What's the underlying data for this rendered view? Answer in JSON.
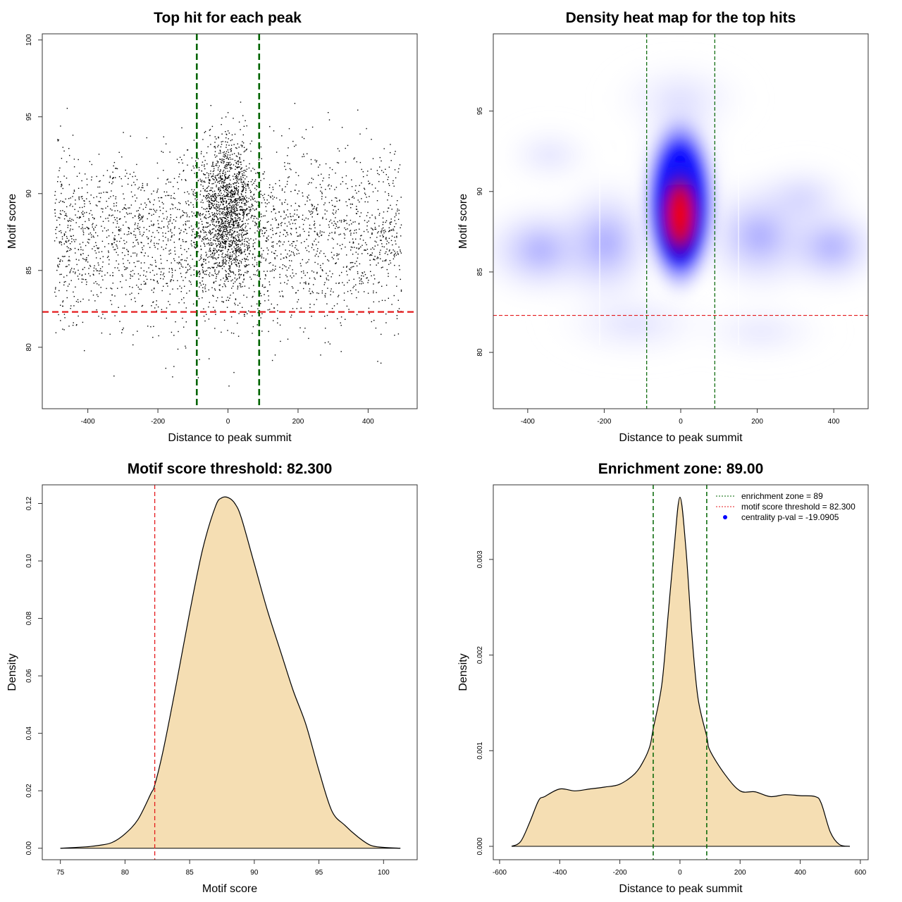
{
  "chart_data": [
    {
      "type": "scatter",
      "title": "Top hit for each peak",
      "xlabel": "Distance to peak summit",
      "ylabel": "Motif score",
      "xlim": [
        -530,
        540
      ],
      "ylim": [
        76,
        100.4
      ],
      "xticks": [
        -400,
        -200,
        0,
        200,
        400
      ],
      "yticks": [
        80,
        85,
        90,
        95,
        100
      ],
      "vlines": [
        -89,
        89
      ],
      "hline": 82.3,
      "vline_color": "#006400",
      "hline_color": "#e41a1c",
      "point_color": "#000000",
      "points_summary": "dense cloud of ~4000 top-hit points; broad background spanning x -500..500, y ~78..98 centered near y=87; concentrated cluster at x ~-80..80, y ~84..95 centered near y=89"
    },
    {
      "type": "heatmap",
      "title": "Density heat map for the top hits",
      "xlabel": "Distance to peak summit",
      "ylabel": "Motif score",
      "xlim": [
        -490,
        490
      ],
      "ylim": [
        76.5,
        99.8
      ],
      "xticks": [
        -400,
        -200,
        0,
        200,
        400
      ],
      "yticks": [
        80,
        85,
        90,
        95
      ],
      "vlines": [
        -89,
        89
      ],
      "hline": 82.3,
      "colormap": [
        "#ffffff",
        "#0000ff",
        "#ff0000"
      ],
      "peak": {
        "x": 0,
        "y": 88.6
      }
    },
    {
      "type": "area",
      "title": "Motif score threshold: 82.300",
      "xlabel": "Motif score",
      "ylabel": "Density",
      "xlim": [
        73.6,
        102.6
      ],
      "ylim": [
        -0.004,
        0.1265
      ],
      "xticks": [
        75,
        80,
        85,
        90,
        95,
        100
      ],
      "yticks": [
        0.0,
        0.02,
        0.04,
        0.06,
        0.08,
        0.1,
        0.12
      ],
      "ytick_labels": [
        "0.00",
        "0.02",
        "0.04",
        "0.06",
        "0.08",
        "0.10",
        "0.12"
      ],
      "vlines": [
        82.3
      ],
      "fill_color": "#f5deb3",
      "x": [
        75,
        77,
        78,
        79,
        80,
        81,
        82,
        82.3,
        83,
        84,
        85,
        86,
        87,
        87.5,
        88,
        88.5,
        89,
        90,
        91,
        92,
        93,
        94,
        95,
        96,
        97,
        98,
        99,
        100,
        101.3
      ],
      "y": [
        0.0,
        0.0005,
        0.001,
        0.002,
        0.005,
        0.01,
        0.019,
        0.022,
        0.035,
        0.058,
        0.082,
        0.104,
        0.119,
        0.122,
        0.122,
        0.12,
        0.115,
        0.099,
        0.083,
        0.069,
        0.055,
        0.043,
        0.027,
        0.013,
        0.008,
        0.004,
        0.001,
        0.0003,
        0.0
      ]
    },
    {
      "type": "area",
      "title": "Enrichment zone: 89.00",
      "xlabel": "Distance to peak summit",
      "ylabel": "Density",
      "xlim": [
        -621,
        626
      ],
      "ylim": [
        -0.00014,
        0.00378
      ],
      "xticks": [
        -600,
        -400,
        -200,
        0,
        200,
        400,
        600
      ],
      "yticks": [
        0.0,
        0.001,
        0.002,
        0.003
      ],
      "ytick_labels": [
        "0.000",
        "0.001",
        "0.002",
        "0.003"
      ],
      "vlines": [
        -89,
        89
      ],
      "fill_color": "#f5deb3",
      "x": [
        -560,
        -530,
        -500,
        -470,
        -450,
        -400,
        -350,
        -300,
        -250,
        -200,
        -150,
        -120,
        -100,
        -89,
        -60,
        -40,
        -20,
        0,
        20,
        40,
        60,
        89,
        100,
        150,
        200,
        250,
        300,
        350,
        400,
        450,
        470,
        500,
        530,
        565
      ],
      "y": [
        0.0,
        5e-05,
        0.00025,
        0.00048,
        0.00052,
        0.0006,
        0.00058,
        0.0006,
        0.00062,
        0.00065,
        0.00076,
        0.0009,
        0.00105,
        0.00123,
        0.0017,
        0.0024,
        0.0031,
        0.00365,
        0.0031,
        0.0022,
        0.00155,
        0.00115,
        0.001,
        0.00075,
        0.00058,
        0.00057,
        0.00052,
        0.00054,
        0.00053,
        0.00052,
        0.00045,
        0.00015,
        2e-05,
        0.0
      ],
      "legend": {
        "position": "top-right",
        "entries": [
          {
            "label": "enrichment zone = 89",
            "color": "#006400",
            "style": "dotted-line"
          },
          {
            "label": "motif score threshold = 82.300",
            "color": "#e41a1c",
            "style": "dotted-line"
          },
          {
            "label": "centrality p-val = -19.0905",
            "color": "#0000ff",
            "style": "point"
          }
        ]
      }
    }
  ]
}
